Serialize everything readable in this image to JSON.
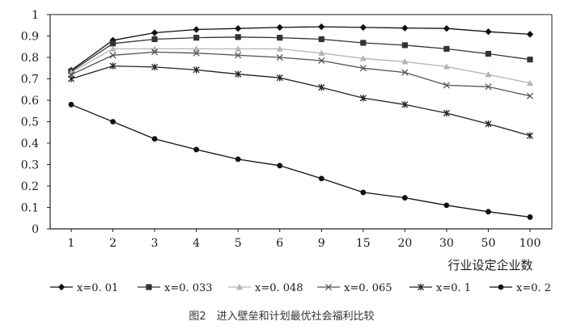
{
  "chart_data": {
    "type": "line",
    "title": "",
    "caption": "图2　进入壁垒和计划最优社会福利比较",
    "xlabel": "行业设定企业数",
    "ylabel": "",
    "categories": [
      "1",
      "2",
      "3",
      "4",
      "5",
      "6",
      "9",
      "15",
      "20",
      "30",
      "50",
      "100"
    ],
    "y_tick_labels": [
      "0",
      "0.1",
      "0.2",
      "0.3",
      "0.4",
      "0.5",
      "0.6",
      "0.7",
      "0.8",
      "0.9",
      "1"
    ],
    "ylim": [
      0,
      1
    ],
    "grid": false,
    "legend_position": "bottom",
    "series": [
      {
        "name": "x=0.01",
        "legend_label": "x=0. 01",
        "marker": "diamond",
        "color": "#111111",
        "values": [
          0.74,
          0.88,
          0.915,
          0.93,
          0.935,
          0.94,
          0.943,
          0.94,
          0.937,
          0.935,
          0.92,
          0.908
        ]
      },
      {
        "name": "x=0.033",
        "legend_label": "x=0. 033",
        "marker": "square",
        "color": "#333333",
        "values": [
          0.735,
          0.865,
          0.885,
          0.892,
          0.895,
          0.892,
          0.885,
          0.868,
          0.857,
          0.84,
          0.817,
          0.79
        ]
      },
      {
        "name": "x=0.048",
        "legend_label": "x=0. 048",
        "marker": "triangle",
        "color": "#b5b5b5",
        "values": [
          0.73,
          0.84,
          0.84,
          0.84,
          0.84,
          0.84,
          0.82,
          0.795,
          0.78,
          0.757,
          0.72,
          0.68
        ]
      },
      {
        "name": "x=0.065",
        "legend_label": "x=0. 065",
        "marker": "x",
        "color": "#555555",
        "values": [
          0.72,
          0.81,
          0.825,
          0.82,
          0.81,
          0.8,
          0.785,
          0.75,
          0.73,
          0.67,
          0.663,
          0.62
        ]
      },
      {
        "name": "x=0.1",
        "legend_label": "x=0. 1",
        "marker": "star",
        "color": "#222222",
        "values": [
          0.7,
          0.76,
          0.755,
          0.742,
          0.722,
          0.705,
          0.66,
          0.61,
          0.58,
          0.54,
          0.49,
          0.435
        ]
      },
      {
        "name": "x=0.2",
        "legend_label": "x=0. 2",
        "marker": "circle",
        "color": "#111111",
        "values": [
          0.58,
          0.5,
          0.42,
          0.37,
          0.325,
          0.295,
          0.235,
          0.17,
          0.145,
          0.11,
          0.08,
          0.055
        ]
      }
    ]
  }
}
